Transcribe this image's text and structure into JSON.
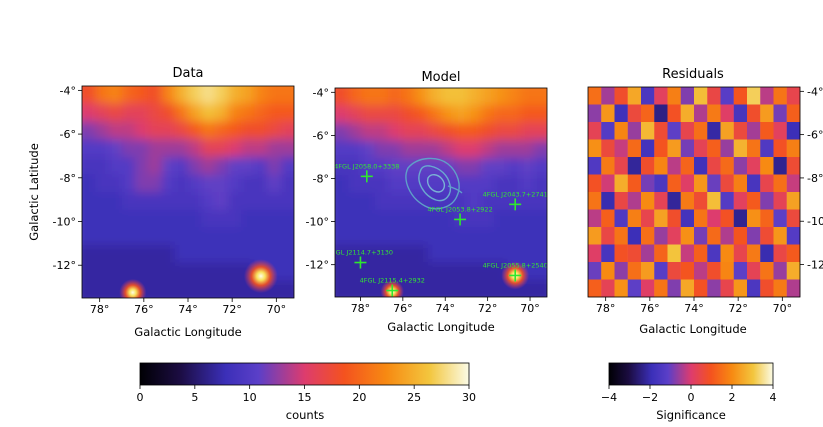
{
  "chart_data": {
    "panels": [
      {
        "id": "data",
        "type": "heatmap",
        "title": "Data",
        "xlabel": "Galactic Longitude",
        "ylabel": "Galactic Latitude",
        "x_ticks": [
          "78°",
          "76°",
          "74°",
          "72°",
          "70°"
        ],
        "x_tick_values": [
          78,
          76,
          74,
          72,
          70
        ],
        "y_ticks": [
          "-4°",
          "-6°",
          "-8°",
          "-10°",
          "-12°"
        ],
        "y_tick_values": [
          -4,
          -6,
          -8,
          -10,
          -12
        ],
        "xlim": [
          78.8,
          69.2
        ],
        "ylim": [
          -13.5,
          -3.8
        ],
        "y_tick_side": "left",
        "colormap": "counts",
        "smooth": true,
        "rows": [
          [
            18,
            21,
            22,
            20,
            19,
            18,
            22,
            25,
            27,
            28,
            27,
            25,
            24,
            22,
            21,
            21
          ],
          [
            15,
            16,
            17,
            16,
            16,
            17,
            18,
            21,
            24,
            26,
            25,
            22,
            21,
            20,
            19,
            19
          ],
          [
            12,
            13,
            14,
            14,
            15,
            16,
            16,
            17,
            19,
            21,
            20,
            19,
            18,
            18,
            17,
            16
          ],
          [
            10,
            10,
            11,
            12,
            12,
            13,
            13,
            13,
            14,
            16,
            16,
            15,
            14,
            14,
            13,
            13
          ],
          [
            9,
            9,
            10,
            10,
            12,
            13,
            11,
            10,
            12,
            13,
            12,
            11,
            11,
            10,
            12,
            10
          ],
          [
            8,
            9,
            9,
            10,
            12,
            12,
            10,
            9,
            10,
            11,
            11,
            10,
            9,
            9,
            11,
            9
          ],
          [
            8,
            8,
            8,
            9,
            9,
            9,
            9,
            9,
            9,
            10,
            11,
            9,
            9,
            9,
            9,
            9
          ],
          [
            8,
            8,
            8,
            8,
            8,
            8,
            8,
            8,
            8,
            9,
            9,
            9,
            8,
            8,
            8,
            8
          ],
          [
            8,
            8,
            8,
            8,
            8,
            8,
            8,
            8,
            8,
            8,
            8,
            8,
            8,
            8,
            8,
            8
          ],
          [
            7,
            7,
            7,
            7,
            7,
            7,
            7,
            8,
            8,
            8,
            8,
            8,
            8,
            8,
            8,
            8
          ],
          [
            7,
            7,
            7,
            7,
            7,
            7,
            7,
            7,
            7,
            7,
            7,
            7,
            7,
            8,
            8,
            8
          ],
          [
            7,
            7,
            7,
            7,
            7,
            7,
            7,
            7,
            7,
            7,
            7,
            7,
            7,
            7,
            7,
            7
          ]
        ],
        "point_sources": [
          {
            "l": 70.7,
            "b": -12.5,
            "sigma": 0.35,
            "amp": 22
          },
          {
            "l": 76.5,
            "b": -13.25,
            "sigma": 0.28,
            "amp": 15
          }
        ]
      },
      {
        "id": "model",
        "type": "heatmap",
        "title": "Model",
        "xlabel": "Galactic Longitude",
        "ylabel": "",
        "x_ticks": [
          "78°",
          "76°",
          "74°",
          "72°",
          "70°"
        ],
        "x_tick_values": [
          78,
          76,
          74,
          72,
          70
        ],
        "y_ticks": [
          "-4°",
          "-6°",
          "-8°",
          "-10°",
          "-12°"
        ],
        "y_tick_values": [
          -4,
          -6,
          -8,
          -10,
          -12
        ],
        "xlim": [
          79.2,
          69.2
        ],
        "ylim": [
          -13.5,
          -3.8
        ],
        "y_tick_side": "left",
        "colormap": "counts",
        "smooth": true,
        "rows": [
          [
            18,
            20,
            21,
            21,
            20,
            21,
            23,
            25,
            26,
            26,
            25,
            24,
            23,
            22,
            21,
            21
          ],
          [
            15,
            16,
            17,
            17,
            17,
            18,
            19,
            21,
            23,
            24,
            23,
            21,
            20,
            20,
            19,
            19
          ],
          [
            12,
            13,
            14,
            14,
            15,
            16,
            16,
            17,
            18,
            19,
            19,
            18,
            17,
            17,
            16,
            16
          ],
          [
            10,
            10,
            11,
            12,
            12,
            13,
            13,
            13,
            14,
            15,
            15,
            14,
            13,
            13,
            13,
            12
          ],
          [
            9,
            9,
            10,
            10,
            11,
            11,
            11,
            11,
            11,
            12,
            12,
            11,
            11,
            10,
            11,
            10
          ],
          [
            8,
            9,
            9,
            9,
            10,
            10,
            10,
            10,
            10,
            10,
            10,
            10,
            9,
            9,
            10,
            9
          ],
          [
            8,
            8,
            8,
            9,
            9,
            9,
            9,
            9,
            9,
            9,
            10,
            9,
            9,
            9,
            9,
            9
          ],
          [
            8,
            8,
            8,
            8,
            8,
            8,
            8,
            8,
            8,
            9,
            9,
            9,
            8,
            8,
            8,
            8
          ],
          [
            8,
            8,
            8,
            8,
            8,
            8,
            8,
            8,
            8,
            8,
            8,
            8,
            8,
            8,
            8,
            8
          ],
          [
            7,
            7,
            7,
            7,
            7,
            7,
            7,
            8,
            8,
            8,
            8,
            8,
            8,
            8,
            8,
            8
          ],
          [
            7,
            7,
            7,
            7,
            7,
            7,
            7,
            7,
            7,
            7,
            7,
            7,
            7,
            8,
            8,
            8
          ],
          [
            7,
            7,
            7,
            7,
            7,
            7,
            7,
            7,
            7,
            7,
            7,
            7,
            7,
            7,
            7,
            7
          ]
        ],
        "point_sources": [
          {
            "l": 70.7,
            "b": -12.5,
            "sigma": 0.3,
            "amp": 22
          },
          {
            "l": 76.5,
            "b": -13.25,
            "sigma": 0.25,
            "amp": 13
          }
        ],
        "sources": [
          {
            "name": "4FGL J2058.0+3338",
            "l": 77.7,
            "b": -7.9
          },
          {
            "name": "4FGL J2053.8+2922",
            "l": 73.3,
            "b": -9.9
          },
          {
            "name": "4FGL J2043.7+2741",
            "l": 70.7,
            "b": -9.2
          },
          {
            "name": "4FGL J2114.7+3130",
            "l": 78.0,
            "b": -11.9
          },
          {
            "name": "4FGL J2115.4+2932",
            "l": 76.5,
            "b": -13.2
          },
          {
            "name": "4FGL J2055.8+2540",
            "l": 70.7,
            "b": -12.5
          }
        ],
        "contour_color": "#5f9fc9"
      },
      {
        "id": "residuals",
        "type": "heatmap",
        "title": "Residuals",
        "xlabel": "Galactic Longitude",
        "ylabel": "",
        "x_ticks": [
          "78°",
          "76°",
          "74°",
          "72°",
          "70°"
        ],
        "x_tick_values": [
          78,
          76,
          74,
          72,
          70
        ],
        "y_ticks": [
          "-4°",
          "-6°",
          "-8°",
          "-10°",
          "-12°"
        ],
        "y_tick_values": [
          -4,
          -6,
          -8,
          -10,
          -12
        ],
        "xlim": [
          78.8,
          69.2
        ],
        "ylim": [
          -13.5,
          -3.8
        ],
        "y_tick_side": "right",
        "colormap": "significance",
        "smooth": false,
        "rows": [
          [
            1.5,
            -0.5,
            0.8,
            2.5,
            -1.5,
            0.2,
            1.8,
            -0.8,
            2.9,
            0.5,
            -1.2,
            1.0,
            3.2,
            -0.3,
            1.6,
            0.4
          ],
          [
            -0.7,
            2.2,
            -1.8,
            0.6,
            1.3,
            -2.4,
            0.9,
            2.6,
            -0.4,
            1.7,
            0.1,
            -1.6,
            0.8,
            2.3,
            -0.9,
            1.2
          ],
          [
            0.3,
            -1.3,
            1.9,
            -0.6,
            2.8,
            0.7,
            -1.1,
            0.4,
            1.5,
            -2.1,
            2.4,
            0.6,
            -0.5,
            1.1,
            0.2,
            -1.9
          ],
          [
            2.1,
            0.6,
            -0.2,
            1.4,
            -1.7,
            1.0,
            2.3,
            -0.9,
            0.3,
            1.2,
            -0.6,
            2.7,
            1.6,
            -1.4,
            0.9,
            1.8
          ],
          [
            -1.4,
            1.7,
            0.4,
            -2.2,
            0.8,
            1.9,
            -0.3,
            1.3,
            -1.8,
            0.5,
            1.4,
            -0.7,
            0.2,
            2.0,
            -2.3,
            0.7
          ],
          [
            0.9,
            -0.1,
            2.6,
            1.1,
            -0.9,
            -1.5,
            1.2,
            0.1,
            2.2,
            -1.0,
            0.6,
            1.8,
            -1.6,
            0.4,
            1.5,
            -0.2
          ],
          [
            1.6,
            -2.0,
            0.5,
            -0.4,
            2.0,
            0.3,
            -2.2,
            1.7,
            0.7,
            2.9,
            -1.3,
            0.2,
            1.1,
            -0.8,
            0.3,
            2.4
          ],
          [
            -0.3,
            1.2,
            -1.4,
            1.8,
            0.4,
            2.4,
            0.8,
            -1.7,
            1.6,
            0.0,
            0.9,
            -2.3,
            2.1,
            1.3,
            -1.1,
            0.6
          ],
          [
            2.3,
            0.5,
            1.6,
            -1.9,
            1.5,
            -0.6,
            0.2,
            2.1,
            -0.9,
            1.4,
            -0.4,
            1.0,
            -0.8,
            0.7,
            2.2,
            -1.3
          ],
          [
            0.1,
            -1.6,
            0.9,
            0.7,
            -0.5,
            1.3,
            3.0,
            -0.2,
            1.2,
            -1.5,
            2.0,
            0.4,
            1.7,
            -2.0,
            0.5,
            1.1
          ],
          [
            -1.0,
            2.0,
            -0.7,
            1.5,
            2.3,
            -1.2,
            0.6,
            1.0,
            -0.3,
            0.8,
            1.9,
            -1.1,
            0.3,
            1.6,
            -0.6,
            2.6
          ],
          [
            1.2,
            0.3,
            2.1,
            -1.1,
            0.1,
            1.6,
            -0.8,
            2.5,
            0.9,
            -0.7,
            0.4,
            2.2,
            -1.5,
            0.8,
            1.7,
            -0.4
          ]
        ]
      }
    ],
    "colorbars": [
      {
        "id": "counts",
        "label": "counts",
        "range": [
          0,
          30
        ],
        "ticks": [
          "0",
          "5",
          "10",
          "15",
          "20",
          "25",
          "30"
        ],
        "tick_values": [
          0,
          5,
          10,
          15,
          20,
          25,
          30
        ]
      },
      {
        "id": "significance",
        "label": "Significance",
        "range": [
          -4,
          4
        ],
        "ticks": [
          "−4",
          "−2",
          "0",
          "2",
          "4"
        ],
        "tick_values": [
          -4,
          -2,
          0,
          2,
          4
        ]
      }
    ],
    "colormap_stops": {
      "counts": [
        [
          0.0,
          "#000004"
        ],
        [
          0.12,
          "#1b0c41"
        ],
        [
          0.26,
          "#3b2fb8"
        ],
        [
          0.36,
          "#5b3fc8"
        ],
        [
          0.5,
          "#dd3c6e"
        ],
        [
          0.62,
          "#f4521f"
        ],
        [
          0.75,
          "#f78a12"
        ],
        [
          0.88,
          "#f3c63e"
        ],
        [
          1.0,
          "#fbfbe6"
        ]
      ]
    }
  }
}
